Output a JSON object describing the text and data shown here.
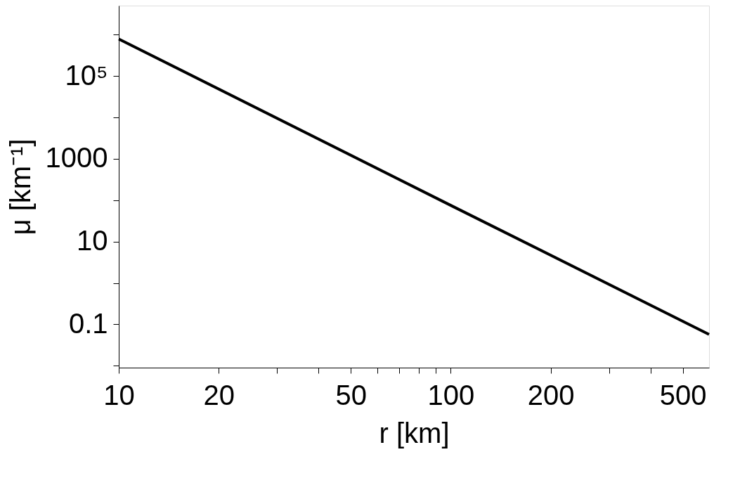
{
  "chart_data": {
    "type": "line",
    "xlabel": "r [km]",
    "ylabel": "μ [km⁻¹]",
    "x": [
      10,
      100,
      600
    ],
    "series": [
      {
        "color": "#000000",
        "values": [
          780000,
          75,
          0.057
        ]
      }
    ],
    "log": "xy",
    "xlim": [
      10,
      600
    ],
    "ylim": [
      0.009,
      5000000
    ],
    "xticks": [
      10,
      20,
      {
        "value": 30,
        "label": null
      },
      {
        "value": 40,
        "label": null
      },
      50,
      {
        "value": 60,
        "label": null
      },
      {
        "value": 70,
        "label": null
      },
      {
        "value": 80,
        "label": null
      },
      {
        "value": 90,
        "label": null
      },
      100,
      200,
      {
        "value": 300,
        "label": null
      },
      {
        "value": 400,
        "label": null
      },
      500
    ],
    "yticks": [
      {
        "value": 0.01,
        "label": null
      },
      0.1,
      {
        "value": 1,
        "label": null
      },
      10,
      {
        "value": 100,
        "label": null
      },
      1000,
      {
        "value": 10000,
        "label": null
      },
      {
        "value": 100000,
        "label": "10⁵"
      },
      {
        "value": 1000000,
        "label": null
      }
    ],
    "marker": "none",
    "line_style": "solid"
  }
}
